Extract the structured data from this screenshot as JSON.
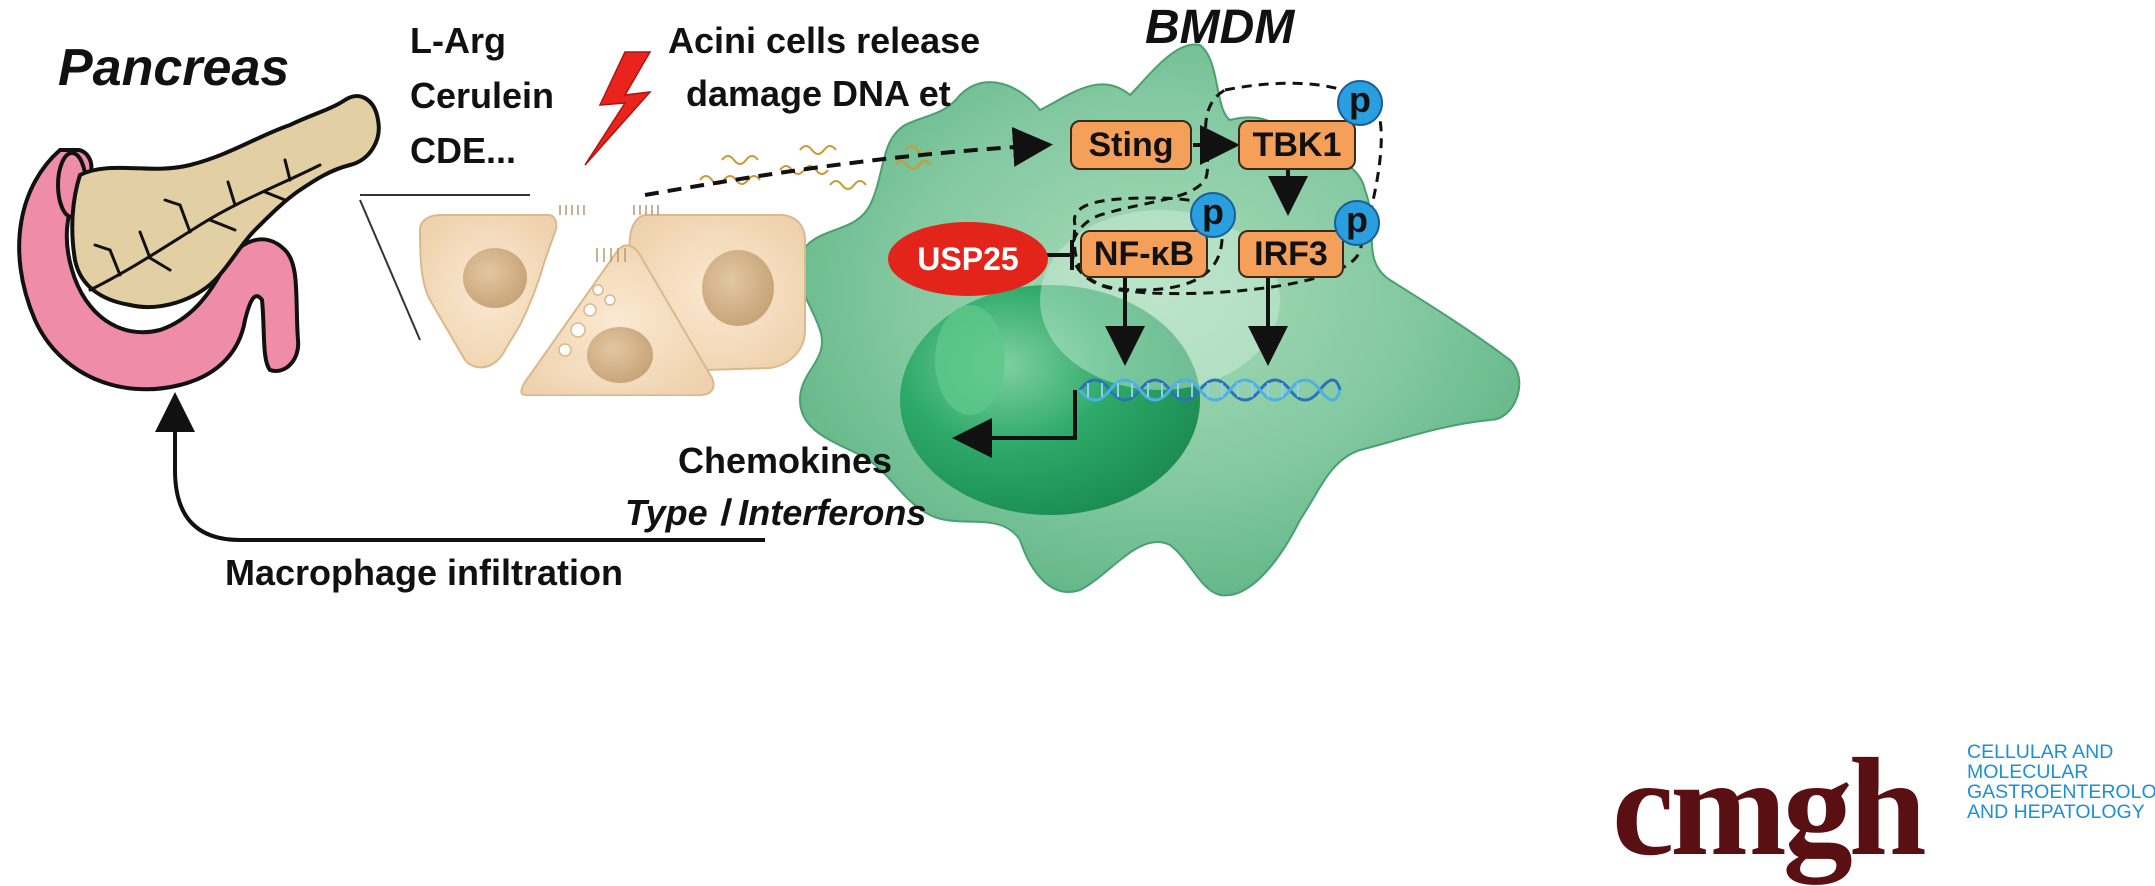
{
  "labels": {
    "pancreas": "Pancreas",
    "inducers": [
      "L-Arg",
      "Cerulein",
      "CDE..."
    ],
    "acini_release": [
      "Acini cells release",
      "damage DNA et"
    ],
    "bmdm": "BMDM",
    "sting": "Sting",
    "tbk1": "TBK1",
    "nfkb": "NF-κB",
    "irf3": "IRF3",
    "usp25": "USP25",
    "phospho": "p",
    "chemokines": "Chemokines",
    "interferons": "Type Ⅰ Interferons",
    "macrophage_infiltration": "Macrophage infiltration"
  },
  "logo": {
    "word": "cmgh",
    "subtitle": [
      "CELLULAR AND",
      "MOLECULAR",
      "GASTROENTEROLOGY",
      "AND HEPATOLOGY"
    ]
  },
  "colors": {
    "macrophage": "#7cc49a",
    "pancreas_tissue": "#e3cfa4",
    "duodenum": "#ef8ca8",
    "node_fill": "#f5a05a",
    "phospho_circle": "#2a9fe0",
    "usp25": "#e3241b",
    "logo_word": "#5a0f12",
    "logo_sub": "#1e8fd6"
  }
}
